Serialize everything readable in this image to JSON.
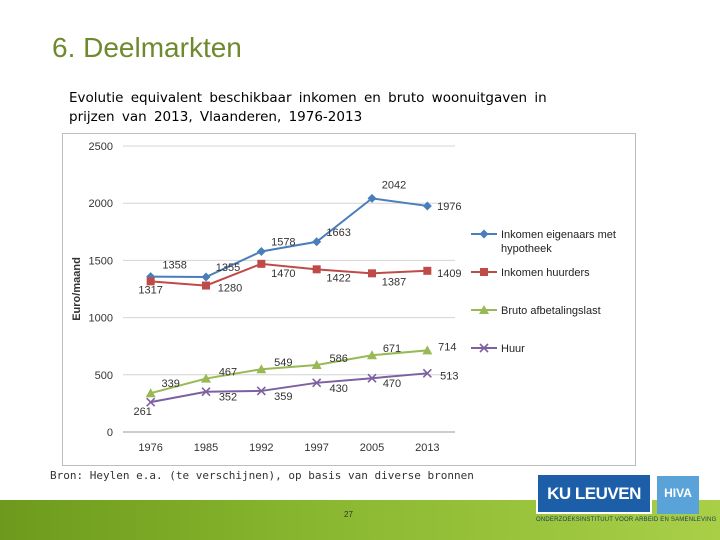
{
  "slide": {
    "title": "6. Deelmarkten",
    "subtitle_line1": "Evolutie equivalent beschikbaar inkomen en bruto woonuitgaven in",
    "subtitle_line2": "prijzen van 2013, Vlaanderen, 1976-2013",
    "source": "Bron: Heylen e.a. (te verschijnen), op basis van diverse bronnen",
    "page_number": "27",
    "logo_ku": "KU LEUVEN",
    "logo_hiva": "HIVA",
    "logo_tagline": "ONDERZOEKSINSTITUUT VOOR ARBEID EN SAMENLEVING"
  },
  "colors": {
    "blue": "#4a7ebb",
    "red": "#be4b48",
    "green": "#98b954",
    "purple": "#7d60a0",
    "title": "#6f8a2e"
  },
  "chart_data": {
    "type": "line",
    "title": "",
    "xlabel": "",
    "ylabel": "Euro/maand",
    "categories": [
      "1976",
      "1985",
      "1992",
      "1997",
      "2005",
      "2013"
    ],
    "ylim": [
      0,
      2500
    ],
    "yticks": [
      0,
      500,
      1000,
      1500,
      2000,
      2500
    ],
    "grid": true,
    "legend": "right",
    "series": [
      {
        "name": "Inkomen eigenaars met hypotheek",
        "legend_lines": [
          "Inkomen eigenaars met",
          "hypotheek"
        ],
        "color": "#4a7ebb",
        "marker": "diamond",
        "values": [
          1358,
          1355,
          1578,
          1663,
          2042,
          1976
        ]
      },
      {
        "name": "Inkomen huurders",
        "legend_lines": [
          "Inkomen huurders"
        ],
        "color": "#be4b48",
        "marker": "square",
        "values": [
          1317,
          1280,
          1470,
          1422,
          1387,
          1409
        ]
      },
      {
        "name": "Bruto afbetalingslast",
        "legend_lines": [
          "Bruto afbetalingslast"
        ],
        "color": "#98b954",
        "marker": "triangle",
        "values": [
          339,
          467,
          549,
          586,
          671,
          714
        ]
      },
      {
        "name": "Huur",
        "legend_lines": [
          "Huur"
        ],
        "color": "#7d60a0",
        "marker": "x",
        "values": [
          261,
          352,
          359,
          430,
          470,
          513
        ]
      }
    ]
  }
}
